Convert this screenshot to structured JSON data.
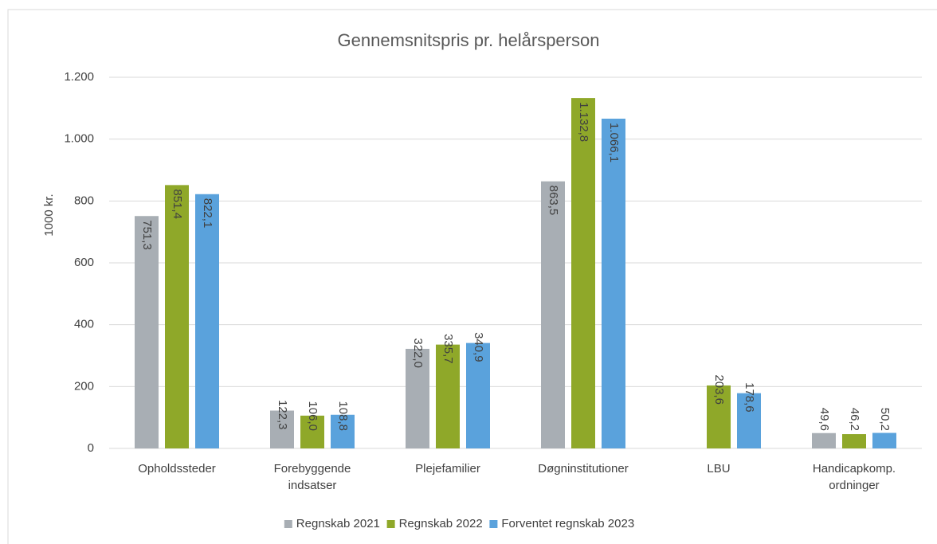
{
  "chart_data": {
    "type": "bar",
    "title": "Gennemsnitspris pr. helårsperson",
    "ylabel": "1000 kr.",
    "categories": [
      "Opholdssteder",
      "Forebyggende indsatser",
      "Plejefamilier",
      "Døgninstitutioner",
      "LBU",
      "Handicapkomp. ordninger"
    ],
    "series": [
      {
        "name": "Regnskab 2021",
        "color": "#a8aeb4",
        "values": [
          751.3,
          122.3,
          322.0,
          863.5,
          null,
          49.6
        ],
        "value_labels": [
          "751,3",
          "122,3",
          "322,0",
          "863,5",
          null,
          "49,6"
        ]
      },
      {
        "name": "Regnskab 2022",
        "color": "#8fa829",
        "values": [
          851.4,
          106.0,
          335.7,
          1132.8,
          203.6,
          46.2
        ],
        "value_labels": [
          "851,4",
          "106,0",
          "335,7",
          "1.132,8",
          "203,6",
          "46,2"
        ]
      },
      {
        "name": "Forventet regnskab 2023",
        "color": "#5aa2dc",
        "values": [
          822.1,
          108.8,
          340.9,
          1066.1,
          178.6,
          50.2
        ],
        "value_labels": [
          "822,1",
          "108,8",
          "340,9",
          "1.066,1",
          "178,6",
          "50,2"
        ]
      }
    ],
    "ylim": [
      0,
      1200
    ],
    "yticks": [
      0,
      200,
      400,
      600,
      800,
      {
        "value": 1000,
        "label": "1.000"
      },
      {
        "value": 1200,
        "label": "1.200"
      }
    ],
    "grid": true,
    "legend": "bottom"
  }
}
